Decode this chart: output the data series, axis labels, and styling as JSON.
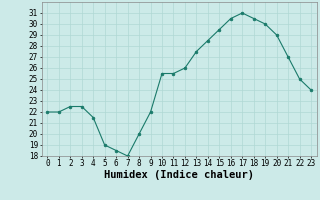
{
  "x": [
    0,
    1,
    2,
    3,
    4,
    5,
    6,
    7,
    8,
    9,
    10,
    11,
    12,
    13,
    14,
    15,
    16,
    17,
    18,
    19,
    20,
    21,
    22,
    23
  ],
  "y": [
    22,
    22,
    22.5,
    22.5,
    21.5,
    19,
    18.5,
    18,
    20,
    22,
    25.5,
    25.5,
    26,
    27.5,
    28.5,
    29.5,
    30.5,
    31,
    30.5,
    30,
    29,
    27,
    25,
    24
  ],
  "xlabel": "Humidex (Indice chaleur)",
  "ylim": [
    18,
    32
  ],
  "xlim": [
    -0.5,
    23.5
  ],
  "yticks": [
    18,
    19,
    20,
    21,
    22,
    23,
    24,
    25,
    26,
    27,
    28,
    29,
    30,
    31
  ],
  "xticks": [
    0,
    1,
    2,
    3,
    4,
    5,
    6,
    7,
    8,
    9,
    10,
    11,
    12,
    13,
    14,
    15,
    16,
    17,
    18,
    19,
    20,
    21,
    22,
    23
  ],
  "line_color": "#1a7a6a",
  "marker_color": "#1a7a6a",
  "bg_color": "#cceae8",
  "grid_color": "#b0d8d4",
  "tick_label_fontsize": 5.5,
  "xlabel_fontsize": 7.5
}
